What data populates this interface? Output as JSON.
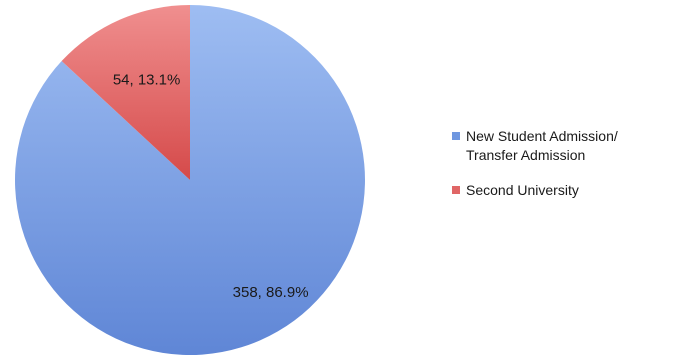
{
  "chart_data": {
    "type": "pie",
    "slices": [
      {
        "label_lines": [
          "New Student Admission/",
          "Transfer Admission"
        ],
        "value": 358,
        "percent": 86.9,
        "data_label": "358, 86.9%",
        "color": "#6f97e0"
      },
      {
        "label_lines": [
          "Second University"
        ],
        "value": 54,
        "percent": 13.1,
        "data_label": "54, 13.1%",
        "color": "#e06666"
      }
    ],
    "start_angle_deg": 0,
    "direction": "clockwise",
    "legend_position": "right"
  }
}
